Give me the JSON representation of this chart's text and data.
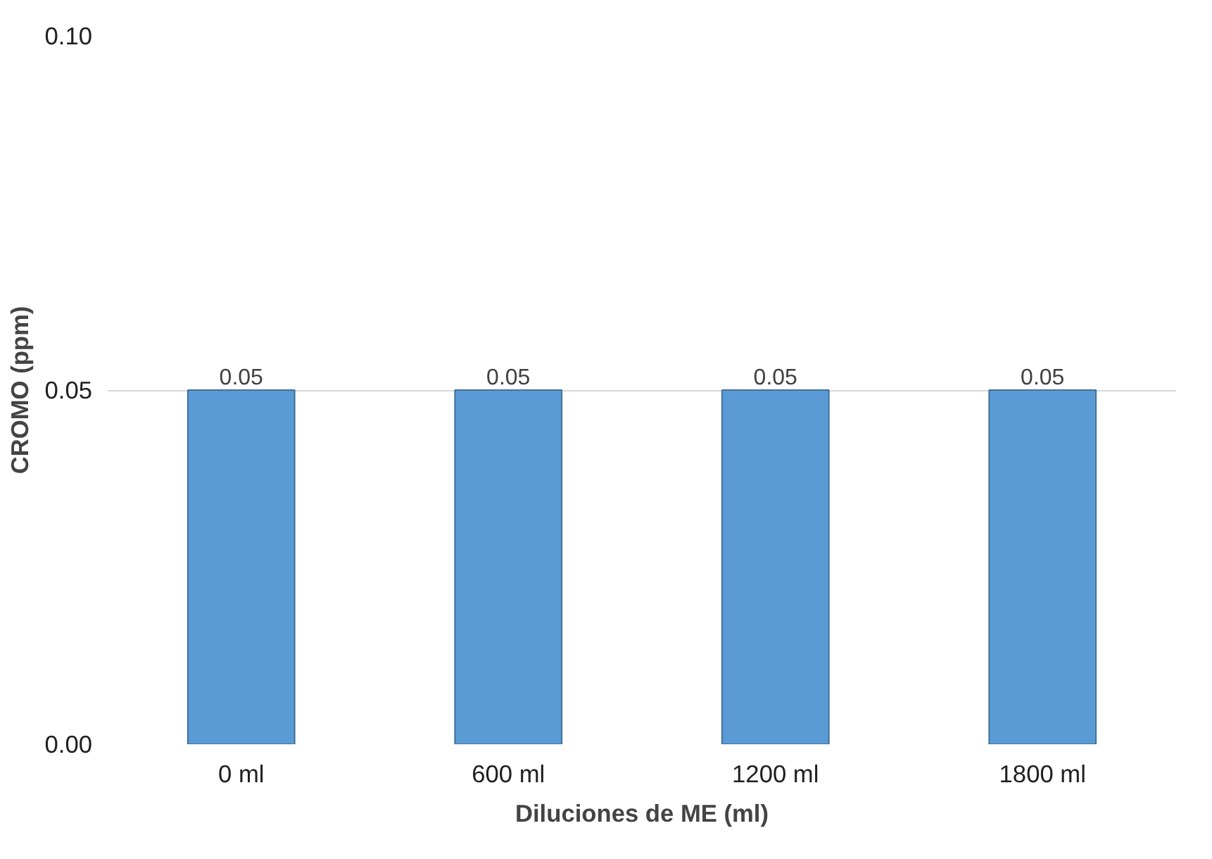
{
  "chart_data": {
    "type": "bar",
    "xlabel": "Diluciones de ME (ml)",
    "ylabel": "CROMO (ppm)",
    "categories": [
      "0 ml",
      "600 ml",
      "1200 ml",
      "1800 ml"
    ],
    "values": [
      0.05,
      0.05,
      0.05,
      0.05
    ],
    "color": "#5b9bd5",
    "ylim": [
      0,
      0.1
    ],
    "yticks": [
      {
        "value": 0,
        "label": "0.00"
      },
      {
        "value": 0.05,
        "label": "0.05"
      },
      {
        "value": 0.1,
        "label": "0.10"
      }
    ],
    "grid": "y",
    "data_labels": true
  }
}
